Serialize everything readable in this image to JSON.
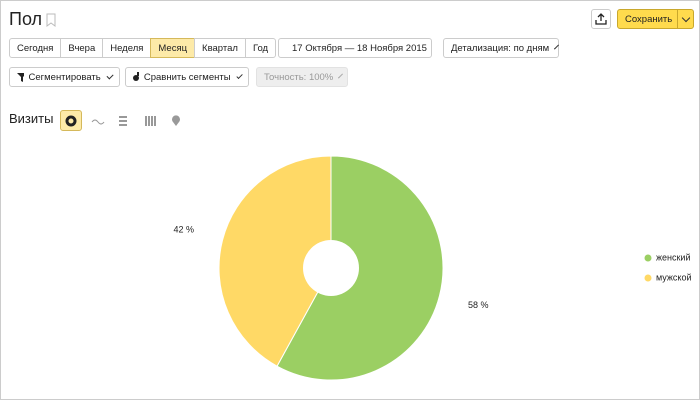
{
  "header": {
    "title": "Пол",
    "save": "Сохранить"
  },
  "periods": [
    "Сегодня",
    "Вчера",
    "Неделя",
    "Месяц",
    "Квартал",
    "Год"
  ],
  "active_period": 3,
  "date_range": "17 Октября — 18 Ноября 2015",
  "detail": "Детализация: по дням",
  "segment": "Сегментировать",
  "compare": "Сравнить сегменты",
  "accuracy": "Точность: 100%",
  "metric": "Визиты",
  "chart_data": {
    "type": "pie",
    "series": [
      {
        "name": "женский",
        "color": "#9bcf63",
        "values": [
          58
        ],
        "value_labels": [
          "58 %"
        ]
      },
      {
        "name": "мужской",
        "color": "#ffd966",
        "values": [
          42
        ],
        "value_labels": [
          "42 %"
        ]
      }
    ],
    "legend": "right"
  }
}
